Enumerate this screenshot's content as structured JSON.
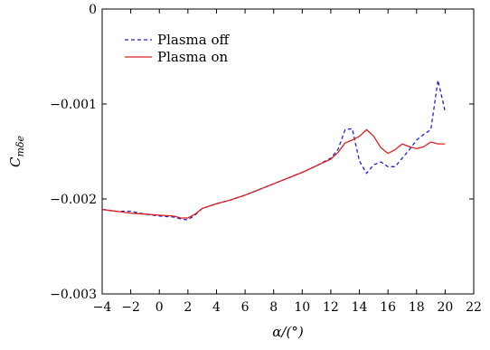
{
  "chart_data": {
    "type": "line",
    "xlabel": "α/(°)",
    "ylabel_main": "C",
    "ylabel_sub": "mδe",
    "xlim": [
      -4,
      22
    ],
    "ylim": [
      -0.003,
      0
    ],
    "xticks": [
      -4,
      -2,
      0,
      2,
      4,
      6,
      8,
      10,
      12,
      14,
      16,
      18,
      20,
      22
    ],
    "xtick_labels": [
      "−4",
      "−2",
      "0",
      "2",
      "4",
      "6",
      "8",
      "10",
      "12",
      "14",
      "16",
      "18",
      "20",
      "22"
    ],
    "yticks": [
      0,
      -0.001,
      -0.002,
      -0.003
    ],
    "ytick_labels": [
      "0",
      "−0.001",
      "−0.002",
      "−0.003"
    ],
    "grid": false,
    "legend_position": "top-left",
    "series": [
      {
        "name": "Plasma off",
        "color": "#1f1fdc",
        "dash": "dashed",
        "x": [
          -4,
          -3,
          -2,
          -1,
          0,
          1,
          1.5,
          2,
          2.5,
          3,
          4,
          5,
          6,
          7,
          8,
          9,
          10,
          11,
          12,
          12.5,
          13,
          13.5,
          14,
          14.5,
          15,
          15.5,
          16,
          16.5,
          17,
          17.5,
          18,
          18.5,
          19,
          19.5,
          20
        ],
        "y": [
          -0.00211,
          -0.00213,
          -0.00213,
          -0.00216,
          -0.00218,
          -0.00219,
          -0.00221,
          -0.00222,
          -0.00217,
          -0.0021,
          -0.00205,
          -0.00201,
          -0.00196,
          -0.0019,
          -0.00184,
          -0.00178,
          -0.00172,
          -0.00165,
          -0.00157,
          -0.00148,
          -0.00127,
          -0.00126,
          -0.0016,
          -0.00173,
          -0.00164,
          -0.00161,
          -0.00166,
          -0.00166,
          -0.00157,
          -0.00148,
          -0.00138,
          -0.00132,
          -0.00127,
          -0.00075,
          -0.00108
        ]
      },
      {
        "name": "Plasma on",
        "color": "#dc1f1f",
        "dash": "solid",
        "x": [
          -4,
          -3,
          -2,
          -1,
          0,
          1,
          1.5,
          2,
          2.5,
          3,
          4,
          5,
          6,
          7,
          8,
          9,
          10,
          11,
          12,
          12.5,
          13,
          13.5,
          14,
          14.5,
          15,
          15.5,
          16,
          16.5,
          17,
          17.5,
          18,
          18.5,
          19,
          19.5,
          20
        ],
        "y": [
          -0.00211,
          -0.00213,
          -0.00215,
          -0.00216,
          -0.00217,
          -0.00218,
          -0.0022,
          -0.0022,
          -0.00216,
          -0.0021,
          -0.00205,
          -0.00201,
          -0.00196,
          -0.0019,
          -0.00184,
          -0.00178,
          -0.00172,
          -0.00165,
          -0.00158,
          -0.00151,
          -0.00141,
          -0.00138,
          -0.00134,
          -0.00127,
          -0.00134,
          -0.00146,
          -0.00152,
          -0.00148,
          -0.00142,
          -0.00145,
          -0.00147,
          -0.00145,
          -0.0014,
          -0.00142,
          -0.00142
        ]
      }
    ]
  }
}
